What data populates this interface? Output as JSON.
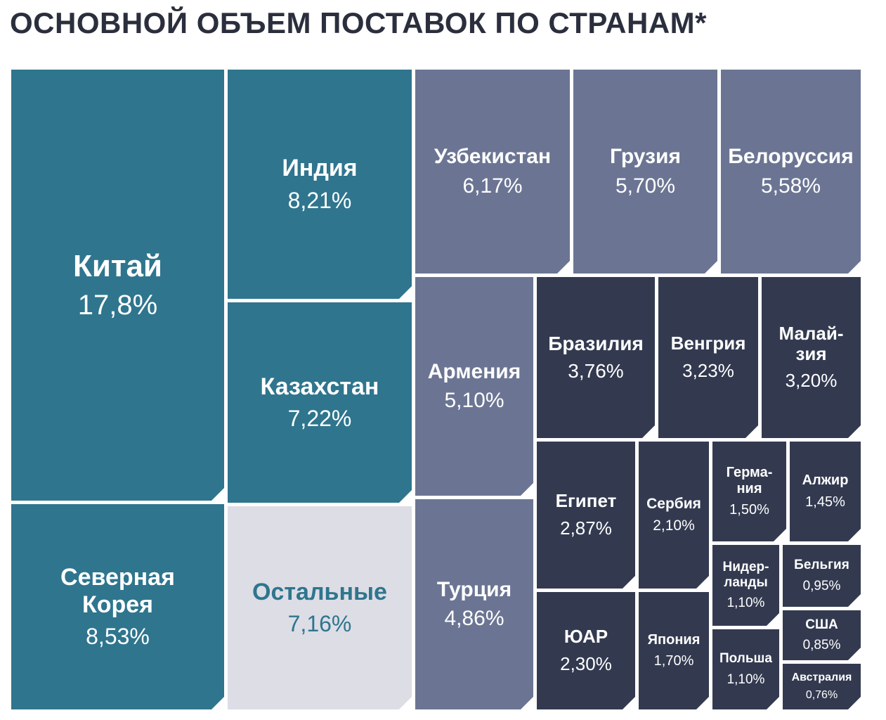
{
  "title": "ОСНОВНОЙ ОБЪЕМ ПОСТАВОК ПО СТРАНАМ*",
  "colors": {
    "group_1": "#2f758e",
    "group_2": "#6b7593",
    "group_3": "#333a50",
    "other": "#dcdde5",
    "other_text": "#2f758e",
    "text": "#ffffff"
  },
  "chart_data": {
    "type": "treemap",
    "title": "ОСНОВНОЙ ОБЪЕМ ПОСТАВОК ПО СТРАНАМ*",
    "unit": "%",
    "items": [
      {
        "name": "Китай",
        "label": "17,8%",
        "value": 17.8,
        "group": "group_1"
      },
      {
        "name": "Северная\nКорея",
        "label": "8,53%",
        "value": 8.53,
        "group": "group_1"
      },
      {
        "name": "Индия",
        "label": "8,21%",
        "value": 8.21,
        "group": "group_1"
      },
      {
        "name": "Казахстан",
        "label": "7,22%",
        "value": 7.22,
        "group": "group_1"
      },
      {
        "name": "Остальные",
        "label": "7,16%",
        "value": 7.16,
        "group": "other"
      },
      {
        "name": "Узбекистан",
        "label": "6,17%",
        "value": 6.17,
        "group": "group_2"
      },
      {
        "name": "Грузия",
        "label": "5,70%",
        "value": 5.7,
        "group": "group_2"
      },
      {
        "name": "Белоруссия",
        "label": "5,58%",
        "value": 5.58,
        "group": "group_2"
      },
      {
        "name": "Армения",
        "label": "5,10%",
        "value": 5.1,
        "group": "group_2"
      },
      {
        "name": "Турция",
        "label": "4,86%",
        "value": 4.86,
        "group": "group_2"
      },
      {
        "name": "Бразилия",
        "label": "3,76%",
        "value": 3.76,
        "group": "group_3"
      },
      {
        "name": "Венгрия",
        "label": "3,23%",
        "value": 3.23,
        "group": "group_3"
      },
      {
        "name": "Малай-\nзия",
        "label": "3,20%",
        "value": 3.2,
        "group": "group_3"
      },
      {
        "name": "Египет",
        "label": "2,87%",
        "value": 2.87,
        "group": "group_3"
      },
      {
        "name": "Сербия",
        "label": "2,10%",
        "value": 2.1,
        "group": "group_3"
      },
      {
        "name": "Герма-\nния",
        "label": "1,50%",
        "value": 1.5,
        "group": "group_3"
      },
      {
        "name": "Алжир",
        "label": "1,45%",
        "value": 1.45,
        "group": "group_3"
      },
      {
        "name": "ЮАР",
        "label": "2,30%",
        "value": 2.3,
        "group": "group_3"
      },
      {
        "name": "Япония",
        "label": "1,70%",
        "value": 1.7,
        "group": "group_3"
      },
      {
        "name": "Нидер-\nланды",
        "label": "1,10%",
        "value": 1.1,
        "group": "group_3"
      },
      {
        "name": "Бельгия",
        "label": "0,95%",
        "value": 0.95,
        "group": "group_3"
      },
      {
        "name": "Польша",
        "label": "1,10%",
        "value": 1.1,
        "group": "group_3"
      },
      {
        "name": "США",
        "label": "0,85%",
        "value": 0.85,
        "group": "group_3"
      },
      {
        "name": "Австралия",
        "label": "0,76%",
        "value": 0.76,
        "group": "group_3"
      }
    ]
  }
}
